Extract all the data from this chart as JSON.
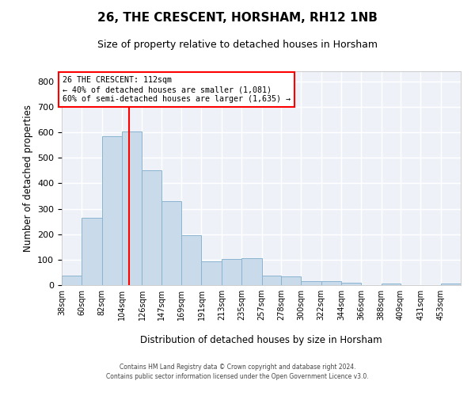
{
  "title": "26, THE CRESCENT, HORSHAM, RH12 1NB",
  "subtitle": "Size of property relative to detached houses in Horsham",
  "xlabel": "Distribution of detached houses by size in Horsham",
  "ylabel": "Number of detached properties",
  "bar_color": "#c9daea",
  "bar_edgecolor": "#89b4d0",
  "background_color": "#eef2f8",
  "grid_color": "#ffffff",
  "vline_x": 112,
  "vline_color": "red",
  "annotation_text": "26 THE CRESCENT: 112sqm\n← 40% of detached houses are smaller (1,081)\n60% of semi-detached houses are larger (1,635) →",
  "annotation_box_color": "red",
  "footnote": "Contains HM Land Registry data © Crown copyright and database right 2024.\nContains public sector information licensed under the Open Government Licence v3.0.",
  "bins": [
    38,
    60,
    82,
    104,
    126,
    147,
    169,
    191,
    213,
    235,
    257,
    278,
    300,
    322,
    344,
    366,
    388,
    409,
    431,
    453,
    475
  ],
  "counts": [
    38,
    265,
    585,
    605,
    452,
    330,
    197,
    92,
    102,
    105,
    38,
    33,
    16,
    15,
    10,
    0,
    7,
    0,
    0,
    7
  ],
  "ylim": [
    0,
    840
  ],
  "yticks": [
    0,
    100,
    200,
    300,
    400,
    500,
    600,
    700,
    800
  ]
}
